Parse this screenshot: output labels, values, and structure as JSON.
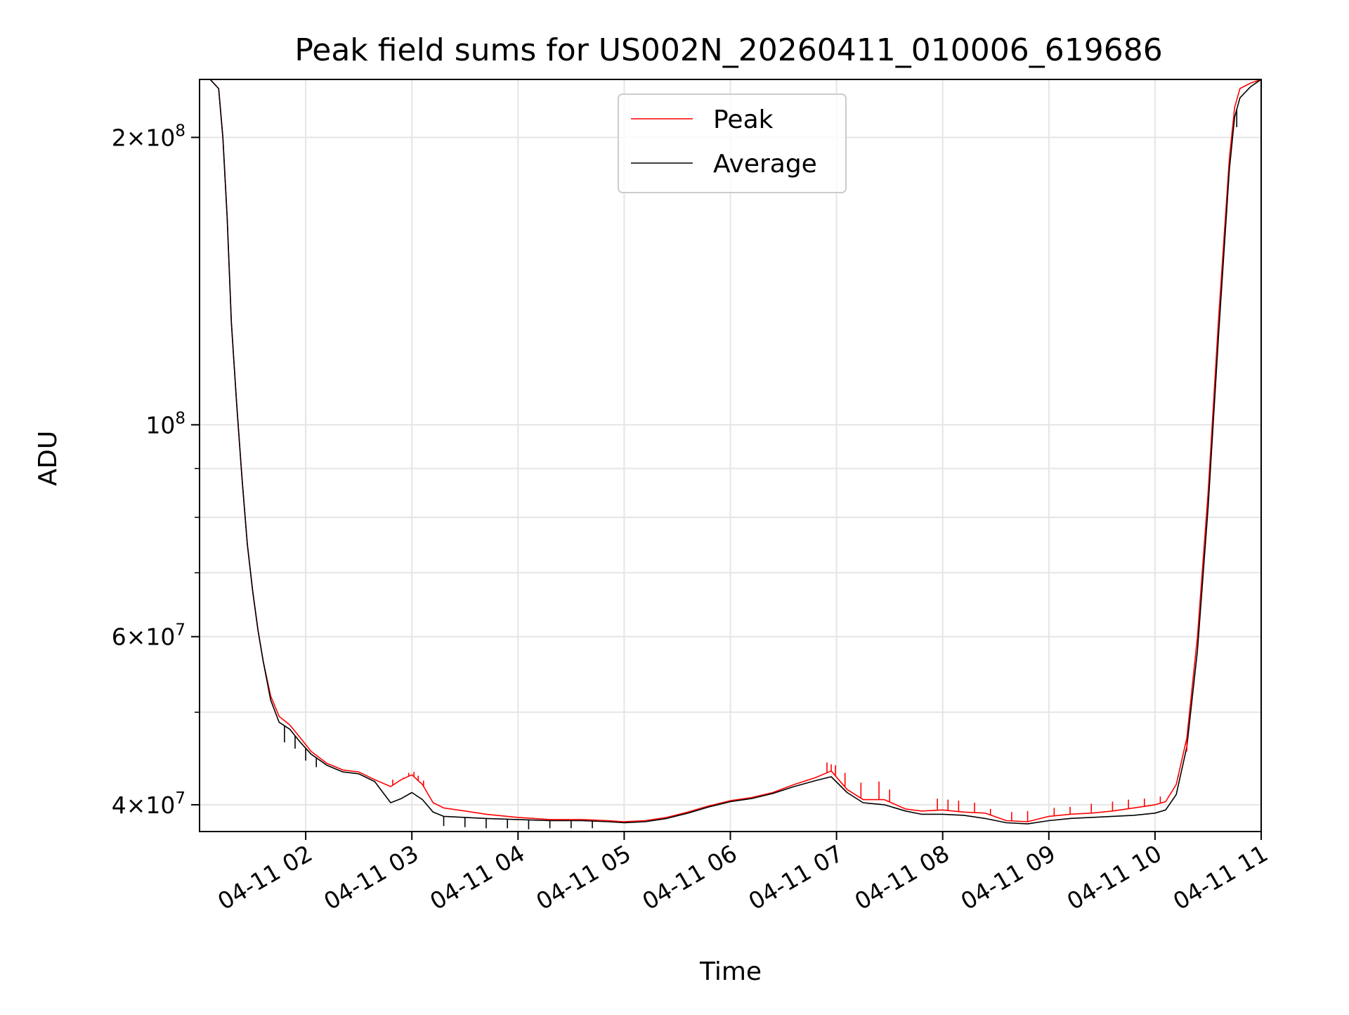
{
  "chart_data": {
    "type": "line",
    "title": "Peak field sums for US002N_20260411_010006_619686",
    "xlabel": "Time",
    "ylabel": "ADU",
    "yscale": "log",
    "ylim": [
      37500000,
      230000000
    ],
    "xlim_hours": [
      1.0,
      11.0
    ],
    "grid": true,
    "legend_position": "upper center",
    "x_ticks": [
      {
        "hour": 2,
        "label": "04-11 02"
      },
      {
        "hour": 3,
        "label": "04-11 03"
      },
      {
        "hour": 4,
        "label": "04-11 04"
      },
      {
        "hour": 5,
        "label": "04-11 05"
      },
      {
        "hour": 6,
        "label": "04-11 06"
      },
      {
        "hour": 7,
        "label": "04-11 07"
      },
      {
        "hour": 8,
        "label": "04-11 08"
      },
      {
        "hour": 9,
        "label": "04-11 09"
      },
      {
        "hour": 10,
        "label": "04-11 10"
      },
      {
        "hour": 11,
        "label": "04-11 11"
      }
    ],
    "y_ticks": [
      {
        "value": 40000000,
        "mantissa": "4",
        "exponent": "7"
      },
      {
        "value": 60000000,
        "mantissa": "6",
        "exponent": "7"
      },
      {
        "value": 100000000,
        "mantissa": "",
        "exponent": "8"
      },
      {
        "value": 200000000,
        "mantissa": "2",
        "exponent": "8"
      }
    ],
    "y_minor_ticks": [
      50000000,
      70000000,
      80000000,
      90000000
    ],
    "series": [
      {
        "name": "Peak",
        "color": "#ff0000",
        "x_hours": [
          1.1,
          1.18,
          1.22,
          1.26,
          1.3,
          1.35,
          1.4,
          1.45,
          1.5,
          1.55,
          1.6,
          1.67,
          1.75,
          1.85,
          1.95,
          2.05,
          2.2,
          2.35,
          2.5,
          2.65,
          2.8,
          2.9,
          3.0,
          3.1,
          3.2,
          3.3,
          3.5,
          3.7,
          4.0,
          4.3,
          4.6,
          4.85,
          5.0,
          5.2,
          5.4,
          5.6,
          5.8,
          6.0,
          6.2,
          6.4,
          6.6,
          6.8,
          6.95,
          7.1,
          7.25,
          7.45,
          7.65,
          7.8,
          8.0,
          8.2,
          8.4,
          8.6,
          8.8,
          9.0,
          9.2,
          9.4,
          9.6,
          9.8,
          10.0,
          10.1,
          10.2,
          10.3,
          10.4,
          10.5,
          10.6,
          10.7,
          10.75,
          10.8,
          10.9,
          11.0
        ],
        "values": [
          230000000,
          225000000,
          200000000,
          165000000,
          128000000,
          105000000,
          88000000,
          75000000,
          67000000,
          61000000,
          56500000,
          52000000,
          49500000,
          48500000,
          47000000,
          45500000,
          44200000,
          43500000,
          43300000,
          42500000,
          41800000,
          42500000,
          43000000,
          42000000,
          40200000,
          39700000,
          39400000,
          39100000,
          38800000,
          38600000,
          38600000,
          38500000,
          38400000,
          38500000,
          38800000,
          39300000,
          39900000,
          40400000,
          40700000,
          41200000,
          42000000,
          42700000,
          43400000,
          41500000,
          40500000,
          40500000,
          39600000,
          39400000,
          39500000,
          39300000,
          39200000,
          38500000,
          38400000,
          38900000,
          39100000,
          39200000,
          39400000,
          39700000,
          40000000,
          40300000,
          42000000,
          47000000,
          60000000,
          85000000,
          130000000,
          190000000,
          215000000,
          225000000,
          228000000,
          230000000
        ]
      },
      {
        "name": "Average",
        "color": "#000000",
        "x_hours": [
          1.1,
          1.18,
          1.22,
          1.26,
          1.3,
          1.35,
          1.4,
          1.45,
          1.5,
          1.55,
          1.6,
          1.67,
          1.75,
          1.85,
          1.95,
          2.05,
          2.2,
          2.35,
          2.5,
          2.65,
          2.8,
          2.9,
          3.0,
          3.1,
          3.2,
          3.3,
          3.5,
          3.7,
          4.0,
          4.3,
          4.6,
          4.85,
          5.0,
          5.2,
          5.4,
          5.6,
          5.8,
          6.0,
          6.2,
          6.4,
          6.6,
          6.8,
          6.95,
          7.1,
          7.25,
          7.45,
          7.65,
          7.8,
          8.0,
          8.2,
          8.4,
          8.6,
          8.8,
          9.0,
          9.2,
          9.4,
          9.6,
          9.8,
          10.0,
          10.1,
          10.2,
          10.3,
          10.4,
          10.5,
          10.6,
          10.7,
          10.75,
          10.8,
          10.9,
          11.0
        ],
        "values": [
          230000000,
          225000000,
          200000000,
          165000000,
          128000000,
          105000000,
          88000000,
          75000000,
          67000000,
          61000000,
          56500000,
          51500000,
          48800000,
          48000000,
          46500000,
          45200000,
          44000000,
          43300000,
          43100000,
          42300000,
          40200000,
          40600000,
          41200000,
          40500000,
          39300000,
          38900000,
          38800000,
          38700000,
          38600000,
          38500000,
          38500000,
          38400000,
          38300000,
          38400000,
          38700000,
          39200000,
          39800000,
          40300000,
          40600000,
          41100000,
          41800000,
          42400000,
          42800000,
          41200000,
          40200000,
          40000000,
          39400000,
          39100000,
          39100000,
          39000000,
          38700000,
          38300000,
          38200000,
          38500000,
          38700000,
          38800000,
          38900000,
          39000000,
          39200000,
          39500000,
          41000000,
          46000000,
          58000000,
          82000000,
          125000000,
          185000000,
          210000000,
          220000000,
          226000000,
          230000000
        ]
      }
    ],
    "spikes": {
      "Peak": [
        {
          "hour": 2.82,
          "value": 42500000
        },
        {
          "hour": 2.86,
          "value": 42200000
        },
        {
          "hour": 2.92,
          "value": 42700000
        },
        {
          "hour": 2.97,
          "value": 43200000
        },
        {
          "hour": 3.02,
          "value": 43300000
        },
        {
          "hour": 3.06,
          "value": 42900000
        },
        {
          "hour": 3.11,
          "value": 42400000
        },
        {
          "hour": 6.91,
          "value": 44300000
        },
        {
          "hour": 6.95,
          "value": 44100000
        },
        {
          "hour": 6.99,
          "value": 44000000
        },
        {
          "hour": 7.08,
          "value": 43200000
        },
        {
          "hour": 7.23,
          "value": 42200000
        },
        {
          "hour": 7.4,
          "value": 42300000
        },
        {
          "hour": 7.5,
          "value": 41500000
        },
        {
          "hour": 7.95,
          "value": 40600000
        },
        {
          "hour": 8.05,
          "value": 40500000
        },
        {
          "hour": 8.15,
          "value": 40400000
        },
        {
          "hour": 8.3,
          "value": 40200000
        },
        {
          "hour": 8.45,
          "value": 39600000
        },
        {
          "hour": 8.65,
          "value": 39300000
        },
        {
          "hour": 8.8,
          "value": 39400000
        },
        {
          "hour": 9.05,
          "value": 39700000
        },
        {
          "hour": 9.2,
          "value": 39800000
        },
        {
          "hour": 9.4,
          "value": 40100000
        },
        {
          "hour": 9.6,
          "value": 40300000
        },
        {
          "hour": 9.75,
          "value": 40500000
        },
        {
          "hour": 9.9,
          "value": 40600000
        },
        {
          "hour": 10.05,
          "value": 40800000
        },
        {
          "hour": 10.15,
          "value": 41200000
        },
        {
          "hour": 10.22,
          "value": 42800000
        },
        {
          "hour": 10.3,
          "value": 45500000
        }
      ],
      "Average": [
        {
          "hour": 1.8,
          "value": 46500000
        },
        {
          "hour": 1.9,
          "value": 45800000
        },
        {
          "hour": 2.0,
          "value": 44500000
        },
        {
          "hour": 2.1,
          "value": 43800000
        },
        {
          "hour": 3.3,
          "value": 38000000
        },
        {
          "hour": 3.5,
          "value": 37900000
        },
        {
          "hour": 3.7,
          "value": 37800000
        },
        {
          "hour": 3.9,
          "value": 37800000
        },
        {
          "hour": 4.1,
          "value": 37700000
        },
        {
          "hour": 4.3,
          "value": 37800000
        },
        {
          "hour": 4.5,
          "value": 37800000
        },
        {
          "hour": 4.7,
          "value": 37800000
        },
        {
          "hour": 10.77,
          "value": 205000000
        }
      ]
    }
  }
}
